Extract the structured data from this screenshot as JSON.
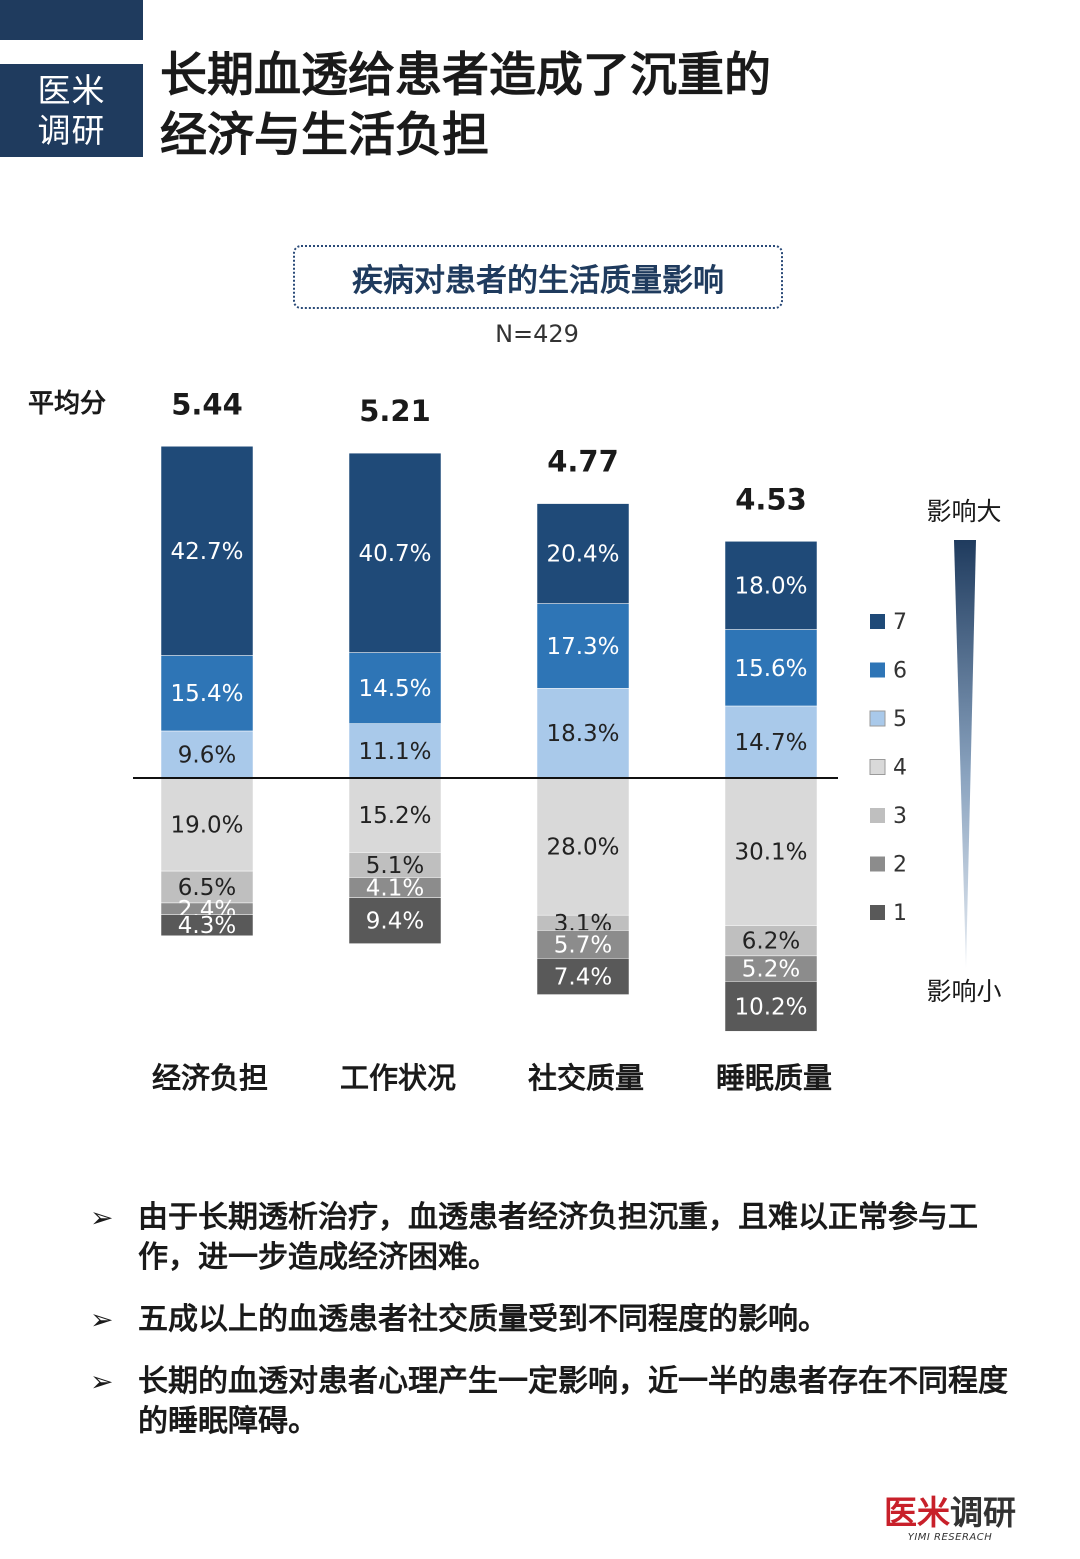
{
  "brand": {
    "line1": "医米",
    "line2": "调研"
  },
  "page_title": {
    "line1": "长期血透给患者造成了沉重的",
    "line2": "经济与生活负担"
  },
  "chart_title": "疾病对患者的生活质量影响",
  "sample_size": "N=429",
  "colors": {
    "header": "#1f3b5e",
    "levels": {
      "7": "#1f4a78",
      "6": "#2e75b6",
      "5": "#a9c9ea",
      "4": "#d9d9d9",
      "3": "#bfbfbf",
      "2": "#8c8c8c",
      "1": "#595959"
    }
  },
  "chart_data": {
    "type": "bar",
    "stacked": "diverging",
    "title": "疾病对患者的生活质量影响",
    "mean_label": "平均分",
    "categories": [
      "经济负担",
      "工作状况",
      "社交质量",
      "睡眠质量"
    ],
    "means": [
      "5.44",
      "5.21",
      "4.77",
      "4.53"
    ],
    "series": [
      {
        "name": "7",
        "values": [
          42.7,
          40.7,
          20.4,
          18.0
        ]
      },
      {
        "name": "6",
        "values": [
          15.4,
          14.5,
          17.3,
          15.6
        ]
      },
      {
        "name": "5",
        "values": [
          9.6,
          11.1,
          18.3,
          14.7
        ]
      },
      {
        "name": "4",
        "values": [
          19.0,
          15.2,
          28.0,
          30.1
        ]
      },
      {
        "name": "3",
        "values": [
          6.5,
          5.1,
          3.1,
          6.2
        ]
      },
      {
        "name": "2",
        "values": [
          2.4,
          4.1,
          5.7,
          5.2
        ]
      },
      {
        "name": "1",
        "values": [
          4.3,
          9.4,
          7.4,
          10.2
        ]
      }
    ],
    "legend": [
      "7",
      "6",
      "5",
      "4",
      "3",
      "2",
      "1"
    ],
    "legend_placement": "right",
    "scale_labels": {
      "high": "影响大",
      "low": "影响小"
    }
  },
  "bullets": [
    "由于长期透析治疗，血透患者经济负担沉重，且难以正常参与工作，进一步造成经济困难。",
    "五成以上的血透患者社交质量受到不同程度的影响。",
    "长期的血透对患者心理产生一定影响，近一半的患者存在不同程度的睡眠障碍。"
  ],
  "footer_logo": {
    "main_a": "医米",
    "main_b": "调研",
    "sub": "YIMI RESERACH"
  }
}
